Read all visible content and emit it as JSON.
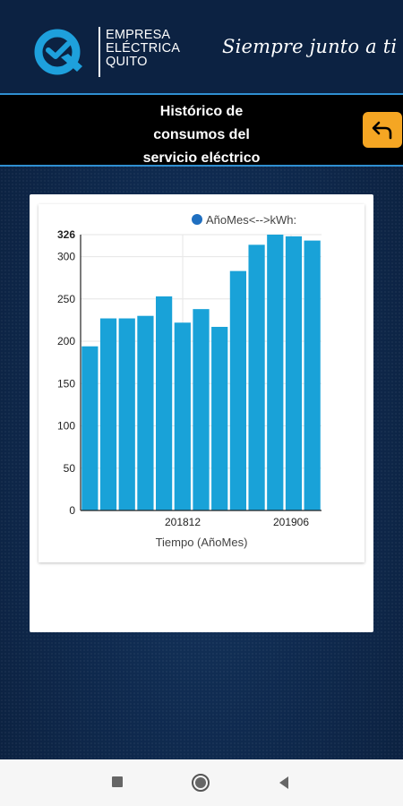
{
  "brand": {
    "logo_letter": "Q",
    "name_lines": [
      "EMPRESA",
      "ELÉCTRICA",
      "QUITO"
    ],
    "slogan": "Siempre junto a ti",
    "colors": {
      "header_bg": "#0c2242",
      "logo_blue": "#1ea0dc",
      "accent_line": "#2f8fd1"
    }
  },
  "page": {
    "title_lines": [
      "Histórico de",
      "consumos del",
      "servicio eléctrico"
    ],
    "back_icon": "return-arrow-icon",
    "back_color": "#f5a623"
  },
  "chart_data": {
    "type": "bar",
    "legend": "AñoMes<-->kWh:",
    "legend_position": "top-right",
    "xlabel": "Tiempo (AñoMes)",
    "x_tick_labels": [
      "201812",
      "201906"
    ],
    "y_max_label": "326",
    "y_ticks": [
      0,
      50,
      100,
      150,
      200,
      250,
      300
    ],
    "ylim": [
      0,
      326
    ],
    "bar_color": "#19a2d8",
    "values": [
      194,
      227,
      227,
      230,
      253,
      222,
      238,
      217,
      283,
      314,
      326,
      324,
      319
    ]
  },
  "nav": {
    "buttons": [
      "recents-icon",
      "home-icon",
      "back-icon"
    ]
  }
}
